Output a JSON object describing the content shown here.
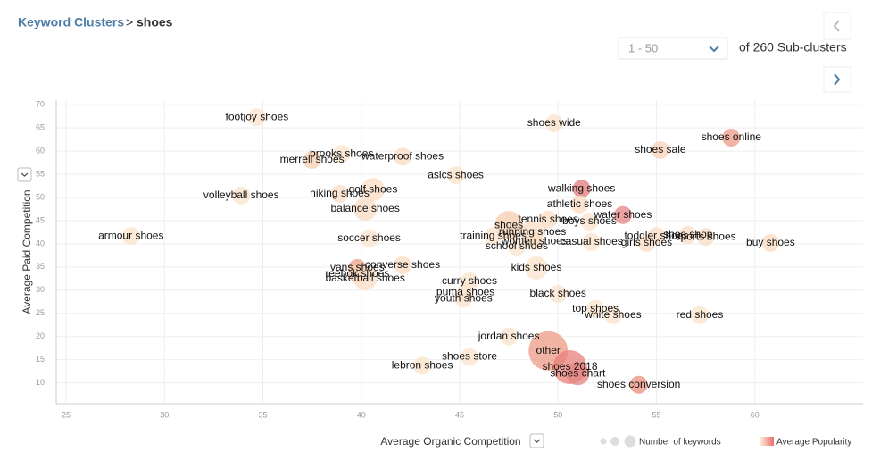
{
  "breadcrumb": {
    "parent": "Keyword Clusters",
    "separator": ">",
    "current": "shoes"
  },
  "pagination": {
    "range": "1 - 50",
    "total": "of 260 Sub-clusters"
  },
  "chart_data": {
    "type": "bubble",
    "x_label": "Average Organic Competition",
    "y_label": "Average Paid Competition",
    "xlim": [
      24.5,
      65.5
    ],
    "ylim": [
      5.5,
      71
    ],
    "xticks": [
      25,
      30,
      35,
      40,
      45,
      50,
      55,
      60
    ],
    "yticks": [
      10,
      15,
      20,
      25,
      30,
      35,
      40,
      45,
      50,
      55,
      60,
      65,
      70
    ],
    "grid": true,
    "size_legend": "Number of keywords",
    "color_legend": "Average Popularity",
    "legend_colors": [
      "#fde9d6",
      "#e8706e"
    ],
    "points": [
      {
        "label": "footjoy shoes",
        "x": 34.7,
        "y": 67.3,
        "size": 1,
        "color": "#fbe3cc"
      },
      {
        "label": "shoes wide",
        "x": 49.8,
        "y": 66.0,
        "size": 1,
        "color": "#fbe3cc"
      },
      {
        "label": "shoes online",
        "x": 58.8,
        "y": 62.9,
        "size": 1,
        "color": "#eb9a85"
      },
      {
        "label": "shoes sale",
        "x": 55.2,
        "y": 60.2,
        "size": 1,
        "color": "#f8d2b7"
      },
      {
        "label": "brooks shoes",
        "x": 39.0,
        "y": 59.4,
        "size": 1,
        "color": "#fbe3cc"
      },
      {
        "label": "merrell shoes",
        "x": 37.5,
        "y": 58.1,
        "size": 1,
        "color": "#f6cdb0"
      },
      {
        "label": "waterproof shoes",
        "x": 42.1,
        "y": 58.8,
        "size": 1,
        "color": "#f9dcc3"
      },
      {
        "label": "asics shoes",
        "x": 44.8,
        "y": 54.8,
        "size": 1,
        "color": "#fbe3cc"
      },
      {
        "label": "volleyball shoes",
        "x": 33.9,
        "y": 50.4,
        "size": 1,
        "color": "#fbe3cc"
      },
      {
        "label": "hiking shoes",
        "x": 38.9,
        "y": 50.8,
        "size": 1,
        "color": "#f9dcc3"
      },
      {
        "label": "golf shoes",
        "x": 40.6,
        "y": 51.7,
        "size": 2,
        "color": "#f9dcc3"
      },
      {
        "label": "walking shoes",
        "x": 51.2,
        "y": 51.9,
        "size": 1,
        "color": "#e07a78"
      },
      {
        "label": "balance shoes",
        "x": 40.2,
        "y": 47.5,
        "size": 2,
        "color": "#f9dcc3"
      },
      {
        "label": "athletic shoes",
        "x": 51.1,
        "y": 48.5,
        "size": 1,
        "color": "#f9dcc3"
      },
      {
        "label": "water shoes",
        "x": 53.3,
        "y": 46.2,
        "size": 1,
        "color": "#e48482"
      },
      {
        "label": "tennis shoes",
        "x": 49.5,
        "y": 45.2,
        "size": 1,
        "color": "#f9dcc3"
      },
      {
        "label": "boys shoes",
        "x": 51.6,
        "y": 44.8,
        "size": 1,
        "color": "#fbe3cc"
      },
      {
        "label": "shoes",
        "x": 47.5,
        "y": 44.0,
        "size": 3,
        "color": "#f6cdb0"
      },
      {
        "label": "running shoes",
        "x": 48.7,
        "y": 42.5,
        "size": 2,
        "color": "#f9dcc3"
      },
      {
        "label": "armour shoes",
        "x": 28.3,
        "y": 41.7,
        "size": 1,
        "color": "#fbe3cc"
      },
      {
        "label": "soccer shoes",
        "x": 40.4,
        "y": 41.2,
        "size": 1,
        "color": "#fbe3cc"
      },
      {
        "label": "training shoes",
        "x": 46.7,
        "y": 41.7,
        "size": 1,
        "color": "#fbe3cc"
      },
      {
        "label": "women shoes",
        "x": 48.8,
        "y": 40.5,
        "size": 1,
        "color": "#f9dcc3"
      },
      {
        "label": "school shoes",
        "x": 47.9,
        "y": 39.4,
        "size": 1,
        "color": "#fbe3cc"
      },
      {
        "label": "casual shoes",
        "x": 51.7,
        "y": 40.4,
        "size": 1,
        "color": "#fbe3cc"
      },
      {
        "label": "toddler shoes",
        "x": 55.0,
        "y": 41.7,
        "size": 1,
        "color": "#f9dcc3"
      },
      {
        "label": "girls shoes",
        "x": 54.5,
        "y": 40.2,
        "size": 1,
        "color": "#f9dcc3"
      },
      {
        "label": "shoe shop",
        "x": 56.6,
        "y": 41.9,
        "size": 1,
        "color": "#f9dcc3"
      },
      {
        "label": "sports shoes",
        "x": 57.5,
        "y": 41.5,
        "size": 1,
        "color": "#f9dcc3"
      },
      {
        "label": "buy shoes",
        "x": 60.8,
        "y": 40.2,
        "size": 1,
        "color": "#f9dcc3"
      },
      {
        "label": "kids shoes",
        "x": 48.9,
        "y": 34.8,
        "size": 2,
        "color": "#fbe3cc"
      },
      {
        "label": "converse shoes",
        "x": 42.1,
        "y": 35.4,
        "size": 1,
        "color": "#f9dcc3"
      },
      {
        "label": "vans shoes",
        "x": 39.8,
        "y": 34.8,
        "size": 1,
        "color": "#eea08a"
      },
      {
        "label": "reebok shoes",
        "x": 39.8,
        "y": 33.5,
        "size": 1,
        "color": "#f6cdb0"
      },
      {
        "label": "basketball shoes",
        "x": 40.2,
        "y": 32.5,
        "size": 2,
        "color": "#f9dcc3"
      },
      {
        "label": "curry shoes",
        "x": 45.5,
        "y": 31.9,
        "size": 1,
        "color": "#fbe3cc"
      },
      {
        "label": "puma shoes",
        "x": 45.3,
        "y": 29.5,
        "size": 1,
        "color": "#fbe3cc"
      },
      {
        "label": "youth shoes",
        "x": 45.2,
        "y": 28.2,
        "size": 1,
        "color": "#fbe3cc"
      },
      {
        "label": "black shoes",
        "x": 50.0,
        "y": 29.2,
        "size": 1,
        "color": "#fbe3cc"
      },
      {
        "label": "top shoes",
        "x": 51.9,
        "y": 26.0,
        "size": 1,
        "color": "#fbe3cc"
      },
      {
        "label": "white shoes",
        "x": 52.8,
        "y": 24.6,
        "size": 1,
        "color": "#fbe3cc"
      },
      {
        "label": "red shoes",
        "x": 57.2,
        "y": 24.6,
        "size": 1,
        "color": "#fbe3cc"
      },
      {
        "label": "jordan shoes",
        "x": 47.5,
        "y": 20.0,
        "size": 1,
        "color": "#fbe3cc"
      },
      {
        "label": "other",
        "x": 49.5,
        "y": 16.9,
        "size": 5,
        "color": "#eb9a85"
      },
      {
        "label": "shoes store",
        "x": 45.5,
        "y": 15.6,
        "size": 1,
        "color": "#fbe3cc"
      },
      {
        "label": "lebron shoes",
        "x": 43.1,
        "y": 13.7,
        "size": 1,
        "color": "#fbe3cc"
      },
      {
        "label": "shoes 2018",
        "x": 50.6,
        "y": 13.4,
        "size": 4,
        "color": "#e8807a"
      },
      {
        "label": "shoes chart",
        "x": 51.0,
        "y": 12.0,
        "size": 2,
        "color": "#e48482"
      },
      {
        "label": "shoes conversion",
        "x": 54.1,
        "y": 9.6,
        "size": 1,
        "color": "#e8907f"
      }
    ]
  }
}
